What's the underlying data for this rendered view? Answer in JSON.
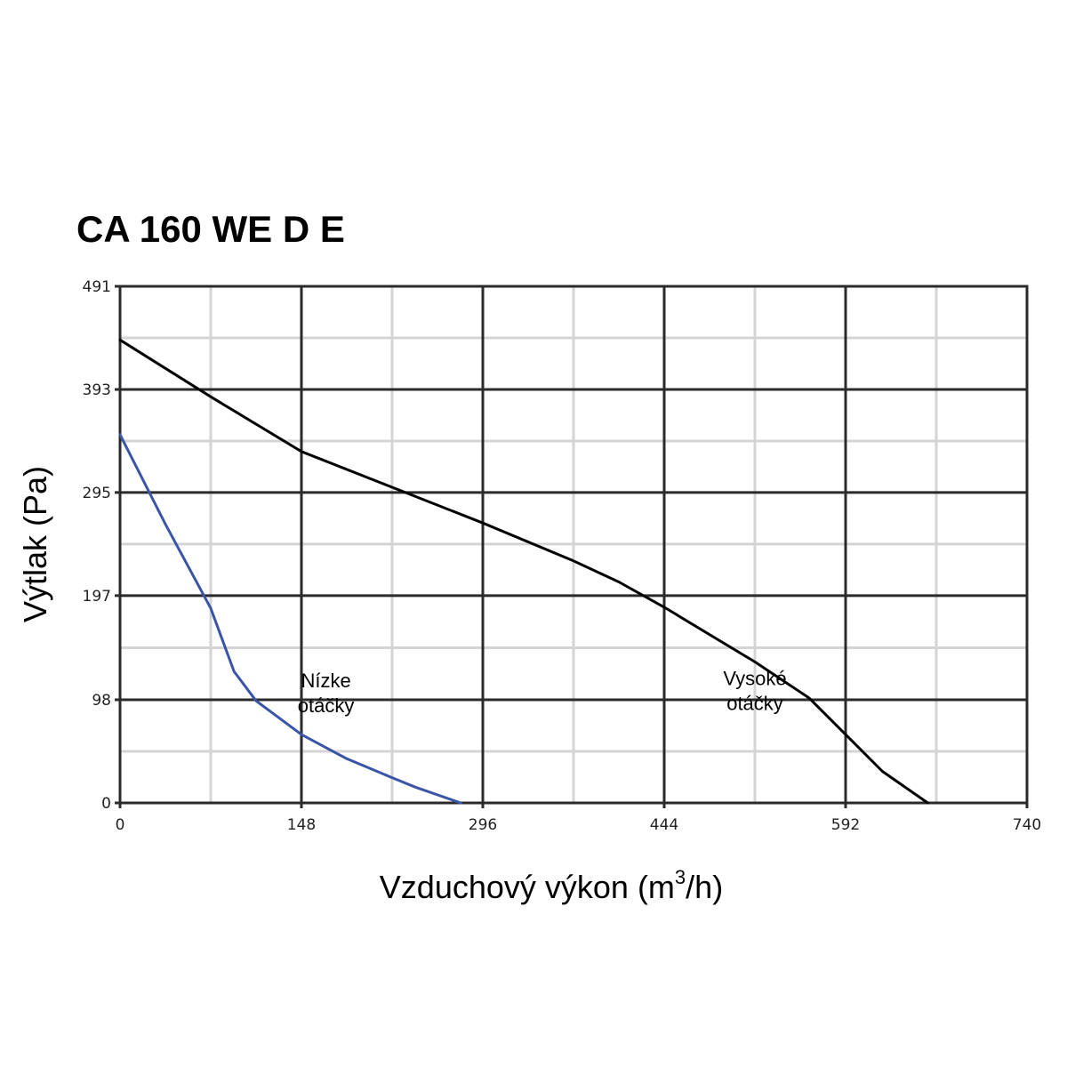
{
  "chart_data": {
    "type": "line",
    "title": "CA 160 WE D E",
    "xlabel": "Vzduchový výkon (m",
    "xlabel_sup": "3",
    "xlabel_end": "/h)",
    "ylabel": "Výtlak (Pa)",
    "xlim": [
      0,
      740
    ],
    "ylim": [
      0,
      491
    ],
    "x_ticks": [
      0,
      148,
      296,
      444,
      592,
      740
    ],
    "y_ticks": [
      0,
      98,
      197,
      295,
      393,
      491
    ],
    "x_tick_labels": [
      "0",
      "148",
      "296",
      "444",
      "592",
      "740"
    ],
    "y_tick_labels": [
      "0",
      "98",
      "197",
      "295",
      "393",
      "491"
    ],
    "grid": true,
    "series": [
      {
        "name": "Vysoké otáčky",
        "color": "#000000",
        "x": [
          0,
          74,
          148,
          222,
          296,
          370,
          407,
          444,
          518,
          562,
          592,
          622,
          659
        ],
        "y": [
          440,
          386,
          334,
          300,
          266,
          230,
          210,
          186,
          134,
          100,
          65,
          30,
          0
        ]
      },
      {
        "name": "Nízke otáčky",
        "color": "#3a55a8",
        "x": [
          0,
          37,
          74,
          93,
          111,
          148,
          185,
          222,
          241,
          278
        ],
        "y": [
          350,
          265,
          185,
          125,
          97,
          65,
          42,
          24,
          15,
          0
        ]
      }
    ],
    "annotations": [
      {
        "lines": [
          "Nízke",
          "otáčky"
        ],
        "x": 168,
        "y": 110,
        "series": "Nízke otáčky"
      },
      {
        "lines": [
          "Vysoké",
          "otáčky"
        ],
        "x": 518,
        "y": 112,
        "series": "Vysoké otáčky"
      }
    ]
  }
}
